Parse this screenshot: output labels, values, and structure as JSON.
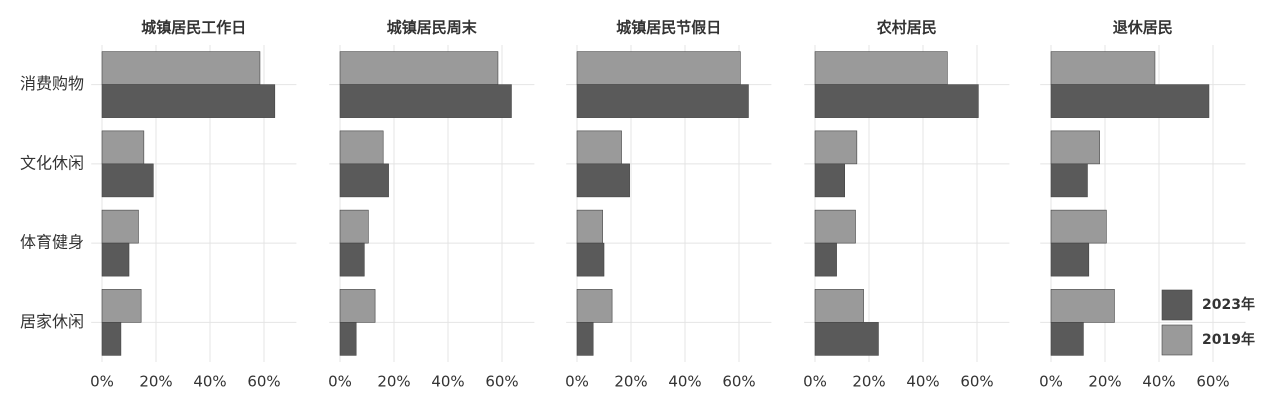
{
  "chart_data": {
    "type": "bar",
    "orientation": "horizontal",
    "categories": [
      "消费购物",
      "文化休闲",
      "体育健身",
      "居家休闲"
    ],
    "series": [
      {
        "name": "2023年",
        "color": "#5a5a5a"
      },
      {
        "name": "2019年",
        "color": "#9a9a9a"
      }
    ],
    "panels": [
      {
        "title": "城镇居民工作日",
        "series": [
          {
            "values": [
              64,
              19,
              10,
              7
            ]
          },
          {
            "values": [
              58.5,
              15.5,
              13.5,
              14.5
            ]
          }
        ]
      },
      {
        "title": "城镇居民周末",
        "series": [
          {
            "values": [
              63.5,
              18,
              9,
              6
            ]
          },
          {
            "values": [
              58.5,
              16,
              10.5,
              13
            ]
          }
        ]
      },
      {
        "title": "城镇居民节假日",
        "series": [
          {
            "values": [
              63.5,
              19.5,
              10,
              6
            ]
          },
          {
            "values": [
              60.5,
              16.5,
              9.5,
              13
            ]
          }
        ]
      },
      {
        "title": "农村居民",
        "series": [
          {
            "values": [
              60.5,
              11,
              8,
              23.5
            ]
          },
          {
            "values": [
              49,
              15.5,
              15,
              18
            ]
          }
        ]
      },
      {
        "title": "退休居民",
        "series": [
          {
            "values": [
              58.5,
              13.5,
              14,
              12
            ]
          },
          {
            "values": [
              38.5,
              18,
              20.5,
              23.5
            ]
          }
        ]
      }
    ],
    "xlim": [
      -4,
      72
    ],
    "xticks": [
      {
        "value": 0,
        "label": "0%"
      },
      {
        "value": 20,
        "label": "20%"
      },
      {
        "value": 40,
        "label": "40%"
      },
      {
        "value": 60,
        "label": "60%"
      }
    ],
    "grid": true,
    "legend": "bottom-right"
  }
}
